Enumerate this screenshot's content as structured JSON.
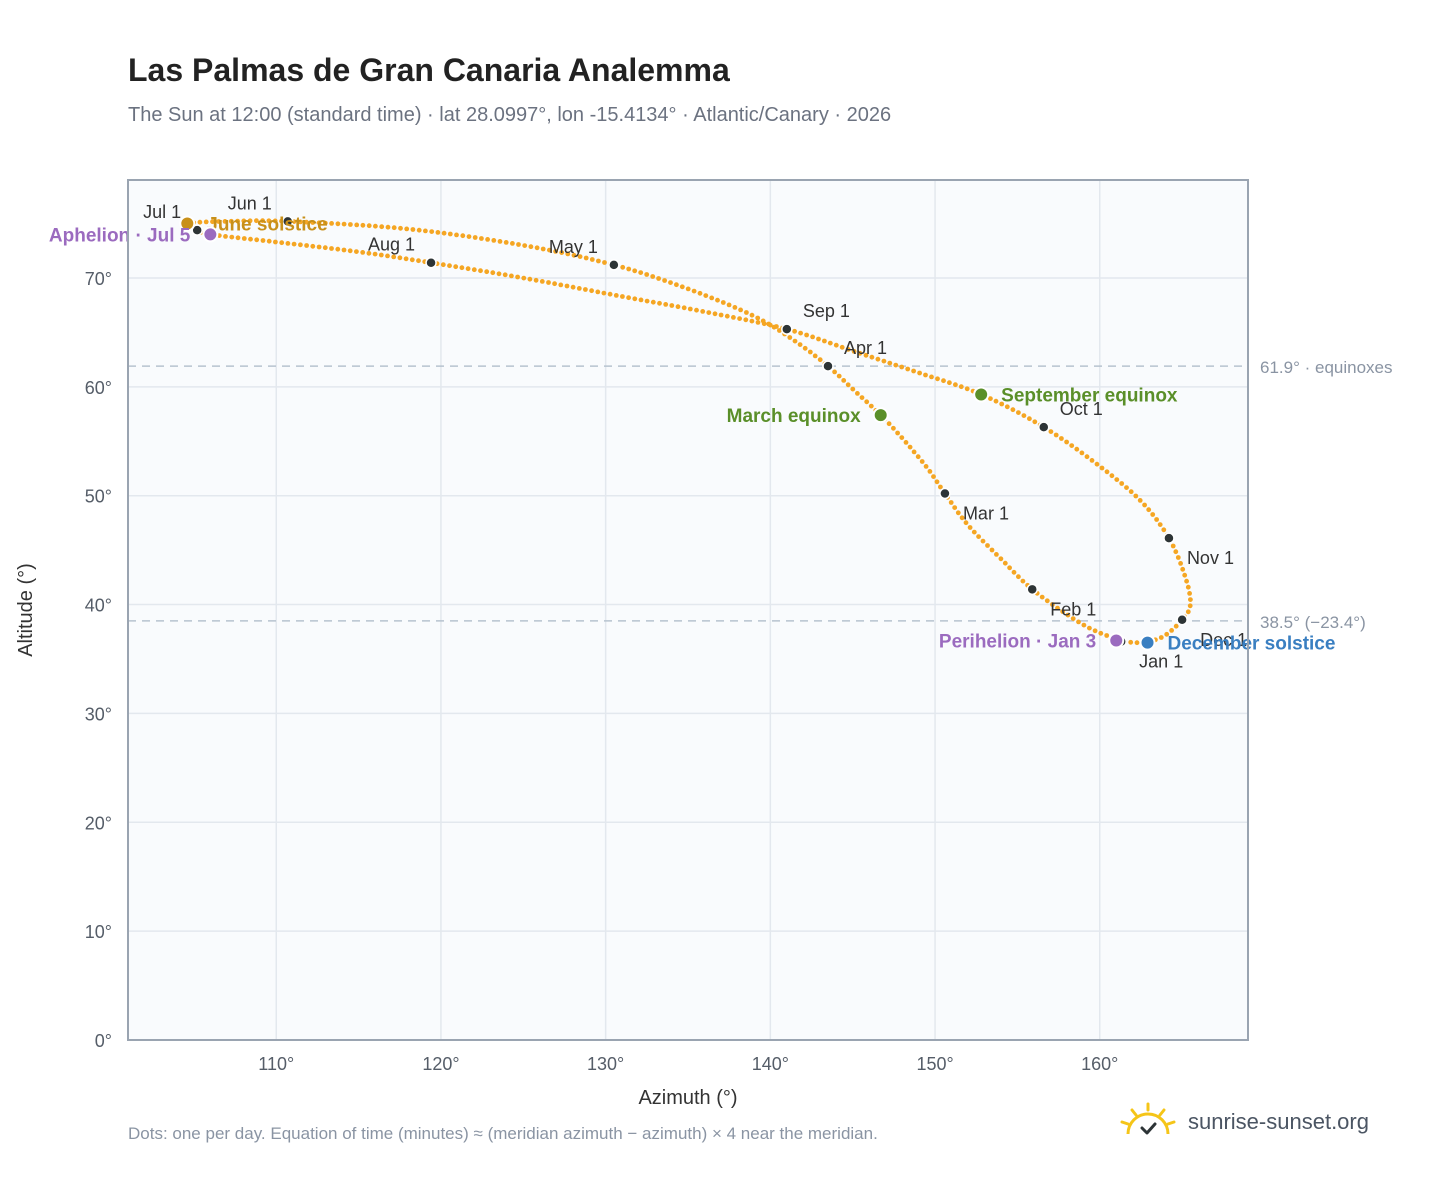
{
  "header": {
    "title": "Las Palmas de Gran Canaria Analemma",
    "subtitle": "The Sun at 12:00 (standard time) · lat 28.0997°, lon -15.4134° · Atlantic/Canary · 2026"
  },
  "footer": {
    "note": "Dots: one per day. Equation of time (minutes) ≈ (meridian azimuth − azimuth) × 4 near the meridian.",
    "brand": "sunrise-sunset.org",
    "brand_icon": "sunrise-logo-icon"
  },
  "colors": {
    "curve": "#f5a623",
    "month_marker": "#2d3436",
    "equinox": "#5a8f29",
    "aphelion_perihelion": "#9b6bbf",
    "june_solstice": "#c8901a",
    "december_solstice": "#3a7fc1",
    "reference_line": "#b7c3cf",
    "reference_text": "#8a94a3",
    "plot_bg": "#f9fbfd",
    "grid": "#e3e8ee",
    "frame": "#9aa4b1"
  },
  "chart_data": {
    "type": "scatter",
    "title": "Las Palmas de Gran Canaria Analemma",
    "subtitle": "The Sun at 12:00 (standard time) · lat 28.0997°, lon -15.4134° · Atlantic/Canary · 2026",
    "xlabel": "Azimuth (°)",
    "ylabel": "Altitude (°)",
    "xlim": [
      101,
      169
    ],
    "ylim": [
      0,
      79
    ],
    "xticks": [
      110,
      120,
      130,
      140,
      150,
      160
    ],
    "xtick_labels": [
      "110°",
      "120°",
      "130°",
      "140°",
      "150°",
      "160°"
    ],
    "yticks": [
      0,
      10,
      20,
      30,
      40,
      50,
      60,
      70
    ],
    "ytick_labels": [
      "0°",
      "10°",
      "20°",
      "30°",
      "40°",
      "50°",
      "60°",
      "70°"
    ],
    "grid": true,
    "series": [
      {
        "values_note": "",
        "points": [
          {
            "x": 161.5,
            "y": 36.6
          },
          {
            "x": 161.0,
            "y": 36.9
          },
          {
            "x": 160.0,
            "y": 37.4
          },
          {
            "x": 158.5,
            "y": 38.6
          },
          {
            "x": 155.9,
            "y": 41.4
          },
          {
            "x": 154.0,
            "y": 44.2
          },
          {
            "x": 152.0,
            "y": 47.3
          },
          {
            "x": 150.6,
            "y": 50.2
          },
          {
            "x": 149.5,
            "y": 52.6
          },
          {
            "x": 148.0,
            "y": 55.3
          },
          {
            "x": 146.7,
            "y": 57.4
          },
          {
            "x": 145.0,
            "y": 59.8
          },
          {
            "x": 143.5,
            "y": 61.9
          },
          {
            "x": 141.5,
            "y": 64.2
          },
          {
            "x": 139.0,
            "y": 66.5
          },
          {
            "x": 135.0,
            "y": 69.0
          },
          {
            "x": 130.5,
            "y": 71.2
          },
          {
            "x": 125.0,
            "y": 73.0
          },
          {
            "x": 118.0,
            "y": 74.5
          },
          {
            "x": 110.7,
            "y": 75.2
          },
          {
            "x": 107.0,
            "y": 75.2
          },
          {
            "x": 104.6,
            "y": 75.0
          },
          {
            "x": 105.2,
            "y": 74.4
          },
          {
            "x": 106.0,
            "y": 74.0
          },
          {
            "x": 110.0,
            "y": 73.3
          },
          {
            "x": 115.0,
            "y": 72.4
          },
          {
            "x": 119.4,
            "y": 71.4
          },
          {
            "x": 125.0,
            "y": 70.0
          },
          {
            "x": 131.0,
            "y": 68.3
          },
          {
            "x": 136.0,
            "y": 66.9
          },
          {
            "x": 141.0,
            "y": 65.3
          },
          {
            "x": 145.0,
            "y": 63.3
          },
          {
            "x": 149.0,
            "y": 61.3
          },
          {
            "x": 152.8,
            "y": 59.3
          },
          {
            "x": 156.6,
            "y": 56.3
          },
          {
            "x": 160.0,
            "y": 52.7
          },
          {
            "x": 162.5,
            "y": 49.5
          },
          {
            "x": 164.2,
            "y": 46.1
          },
          {
            "x": 165.2,
            "y": 42.5
          },
          {
            "x": 165.5,
            "y": 40.0
          },
          {
            "x": 165.0,
            "y": 38.6
          },
          {
            "x": 164.0,
            "y": 37.2
          },
          {
            "x": 163.0,
            "y": 36.6
          },
          {
            "x": 162.2,
            "y": 36.5
          },
          {
            "x": 161.5,
            "y": 36.6
          }
        ]
      }
    ],
    "month_markers": [
      {
        "label": "Jan 1",
        "x": 161.3,
        "y": 36.6,
        "label_pos": "below-right"
      },
      {
        "label": "Feb 1",
        "x": 155.9,
        "y": 41.4,
        "label_pos": "below-right"
      },
      {
        "label": "Mar 1",
        "x": 150.6,
        "y": 50.2,
        "label_pos": "below-right"
      },
      {
        "label": "Apr 1",
        "x": 143.5,
        "y": 61.9,
        "label_pos": "above-right"
      },
      {
        "label": "May 1",
        "x": 130.5,
        "y": 71.2,
        "label_pos": "above-left"
      },
      {
        "label": "Jun 1",
        "x": 110.7,
        "y": 75.2,
        "label_pos": "above-left"
      },
      {
        "label": "Jul 1",
        "x": 105.2,
        "y": 74.4,
        "label_pos": "above-left"
      },
      {
        "label": "Aug 1",
        "x": 119.4,
        "y": 71.4,
        "label_pos": "above-left"
      },
      {
        "label": "Sep 1",
        "x": 141.0,
        "y": 65.3,
        "label_pos": "above-right"
      },
      {
        "label": "Oct 1",
        "x": 156.6,
        "y": 56.3,
        "label_pos": "above-right"
      },
      {
        "label": "Nov 1",
        "x": 164.2,
        "y": 46.1,
        "label_pos": "below-right"
      },
      {
        "label": "Dec 1",
        "x": 165.0,
        "y": 38.6,
        "label_pos": "below-right"
      }
    ],
    "special_points": [
      {
        "label": "March equinox",
        "x": 146.7,
        "y": 57.4,
        "color": "#5a8f29",
        "label_pos": "left"
      },
      {
        "label": "September equinox",
        "x": 152.8,
        "y": 59.3,
        "color": "#5a8f29",
        "label_pos": "right"
      },
      {
        "label": "June solstice",
        "x": 104.6,
        "y": 75.0,
        "color": "#c8901a",
        "label_pos": "right"
      },
      {
        "label": "December solstice",
        "x": 162.9,
        "y": 36.5,
        "color": "#3a7fc1",
        "label_pos": "right"
      },
      {
        "label": "Aphelion · Jul 5",
        "x": 106.0,
        "y": 74.0,
        "color": "#9b6bbf",
        "label_pos": "left"
      },
      {
        "label": "Perihelion · Jan 3",
        "x": 161.0,
        "y": 36.7,
        "color": "#9b6bbf",
        "label_pos": "left"
      }
    ],
    "reference_lines": [
      {
        "y": 61.9,
        "label": "61.9° · equinoxes"
      },
      {
        "y": 38.5,
        "label": "38.5° (−23.4°)"
      }
    ]
  }
}
